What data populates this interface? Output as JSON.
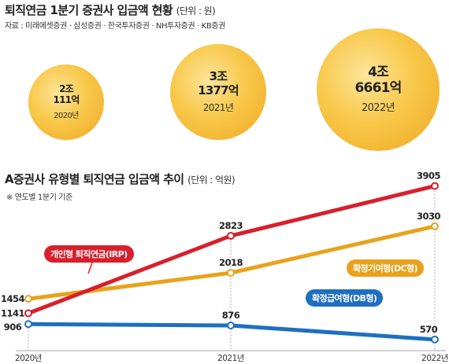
{
  "top": {
    "title": "퇴직연금 1분기 증권사 입금액 현황",
    "unit": "(단위 : 원)",
    "source": "자료 : 미래에셋증권 · 삼성증권 · 한국투자증권 · NH투자증권 · KB증권",
    "bubbles": [
      {
        "line1": "2조",
        "line2": "111억",
        "year": "2020년"
      },
      {
        "line1": "3조",
        "line2": "1377억",
        "year": "2021년"
      },
      {
        "line1": "4조",
        "line2": "6661억",
        "year": "2022년"
      }
    ]
  },
  "bottom": {
    "title": "A증권사 유형별 퇴직연금 입금액 추이",
    "unit": "(단위 : 억원)",
    "note": "※ 연도별 1분기 기준"
  },
  "chart_data": [
    {
      "type": "bubble",
      "title": "퇴직연금 1분기 증권사 입금액 현황",
      "categories": [
        "2020년",
        "2021년",
        "2022년"
      ],
      "values": [
        "2조 111억",
        "3조 1377억",
        "4조 6661억"
      ],
      "values_numeric": [
        20111,
        31377,
        46661
      ],
      "unit": "원"
    },
    {
      "type": "line",
      "title": "A증권사 유형별 퇴직연금 입금액 추이",
      "categories": [
        "2020년",
        "2021년",
        "2022년"
      ],
      "ylim": [
        500,
        4000
      ],
      "grid": false,
      "series": [
        {
          "name": "개인형 퇴직연금(IRP)",
          "values": [
            1141,
            2823,
            3905
          ],
          "color": "#d7202c"
        },
        {
          "name": "확정기여형(DC형)",
          "values": [
            1454,
            2018,
            3030
          ],
          "color": "#e9a21c"
        },
        {
          "name": "확정급여형(DB형)",
          "values": [
            906,
            876,
            570
          ],
          "color": "#1e6fc0"
        }
      ]
    }
  ]
}
